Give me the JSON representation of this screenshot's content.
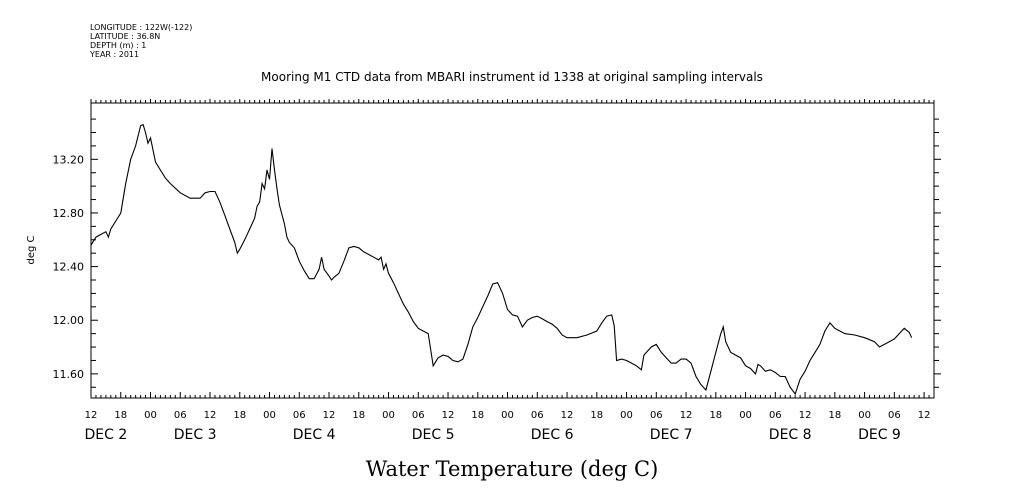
{
  "header": {
    "meta_lines": [
      "LONGITUDE : 122W(-122)",
      "LATITUDE : 36.8N",
      "DEPTH (m) : 1",
      "YEAR : 2011"
    ]
  },
  "chart_data": {
    "type": "line",
    "title": "Mooring M1 CTD data from MBARI instrument id 1338 at original sampling intervals",
    "ylabel": "deg C",
    "xlabel": "Water Temperature (deg C)",
    "ylim": [
      11.42,
      13.62
    ],
    "xlim": [
      0,
      170
    ],
    "x_unit": "hours since 12:00 Dec 1",
    "yticks": [
      11.6,
      12.0,
      12.4,
      12.8,
      13.2
    ],
    "ytick_labels": [
      "11.60",
      "12.00",
      "12.40",
      "12.80",
      "13.20"
    ],
    "hour_ticks": [
      {
        "x": 0,
        "label": "12"
      },
      {
        "x": 6,
        "label": "18"
      },
      {
        "x": 12,
        "label": "00"
      },
      {
        "x": 18,
        "label": "06"
      },
      {
        "x": 24,
        "label": "12"
      },
      {
        "x": 30,
        "label": "18"
      },
      {
        "x": 36,
        "label": "00"
      },
      {
        "x": 42,
        "label": "06"
      },
      {
        "x": 48,
        "label": "12"
      },
      {
        "x": 54,
        "label": "18"
      },
      {
        "x": 60,
        "label": "00"
      },
      {
        "x": 66,
        "label": "06"
      },
      {
        "x": 72,
        "label": "12"
      },
      {
        "x": 78,
        "label": "18"
      },
      {
        "x": 84,
        "label": "00"
      },
      {
        "x": 90,
        "label": "06"
      },
      {
        "x": 96,
        "label": "12"
      },
      {
        "x": 102,
        "label": "18"
      },
      {
        "x": 108,
        "label": "00"
      },
      {
        "x": 114,
        "label": "06"
      },
      {
        "x": 120,
        "label": "12"
      },
      {
        "x": 126,
        "label": "18"
      },
      {
        "x": 132,
        "label": "00"
      },
      {
        "x": 138,
        "label": "06"
      },
      {
        "x": 144,
        "label": "12"
      },
      {
        "x": 150,
        "label": "18"
      },
      {
        "x": 156,
        "label": "00"
      },
      {
        "x": 162,
        "label": "06"
      },
      {
        "x": 168,
        "label": "12"
      }
    ],
    "day_labels": [
      {
        "x": 3,
        "label": "DEC  2"
      },
      {
        "x": 21,
        "label": "DEC  3"
      },
      {
        "x": 45,
        "label": "DEC  4"
      },
      {
        "x": 69,
        "label": "DEC  5"
      },
      {
        "x": 93,
        "label": "DEC  6"
      },
      {
        "x": 117,
        "label": "DEC  7"
      },
      {
        "x": 141,
        "label": "DEC  8"
      },
      {
        "x": 159,
        "label": "DEC  9"
      }
    ],
    "series": [
      {
        "points": [
          [
            0,
            12.56
          ],
          [
            1,
            12.62
          ],
          [
            2,
            12.64
          ],
          [
            3,
            12.66
          ],
          [
            3.5,
            12.62
          ],
          [
            4,
            12.68
          ],
          [
            5,
            12.74
          ],
          [
            6,
            12.8
          ],
          [
            7,
            13.02
          ],
          [
            8,
            13.2
          ],
          [
            9,
            13.3
          ],
          [
            10,
            13.45
          ],
          [
            10.5,
            13.46
          ],
          [
            11,
            13.4
          ],
          [
            11.5,
            13.32
          ],
          [
            12,
            13.36
          ],
          [
            13,
            13.18
          ],
          [
            14,
            13.12
          ],
          [
            15,
            13.06
          ],
          [
            16,
            13.02
          ],
          [
            18,
            12.95
          ],
          [
            20,
            12.91
          ],
          [
            22,
            12.91
          ],
          [
            23,
            12.95
          ],
          [
            24,
            12.96
          ],
          [
            25,
            12.96
          ],
          [
            26,
            12.88
          ],
          [
            27,
            12.78
          ],
          [
            28,
            12.68
          ],
          [
            29,
            12.58
          ],
          [
            29.5,
            12.5
          ],
          [
            30,
            12.53
          ],
          [
            31,
            12.6
          ],
          [
            32,
            12.68
          ],
          [
            33,
            12.76
          ],
          [
            33.5,
            12.85
          ],
          [
            34,
            12.88
          ],
          [
            34.5,
            13.02
          ],
          [
            35,
            12.98
          ],
          [
            35.5,
            13.12
          ],
          [
            36,
            13.05
          ],
          [
            36.5,
            13.28
          ],
          [
            37,
            13.12
          ],
          [
            37.5,
            12.98
          ],
          [
            38,
            12.86
          ],
          [
            39,
            12.72
          ],
          [
            39.5,
            12.62
          ],
          [
            40,
            12.58
          ],
          [
            41,
            12.54
          ],
          [
            42,
            12.44
          ],
          [
            43,
            12.37
          ],
          [
            44,
            12.31
          ],
          [
            45,
            12.31
          ],
          [
            46,
            12.38
          ],
          [
            46.5,
            12.47
          ],
          [
            47,
            12.38
          ],
          [
            48,
            12.33
          ],
          [
            48.5,
            12.3
          ],
          [
            49,
            12.32
          ],
          [
            50,
            12.35
          ],
          [
            51,
            12.44
          ],
          [
            52,
            12.54
          ],
          [
            53,
            12.55
          ],
          [
            54,
            12.54
          ],
          [
            55,
            12.51
          ],
          [
            56,
            12.49
          ],
          [
            57,
            12.47
          ],
          [
            58,
            12.45
          ],
          [
            58.5,
            12.47
          ],
          [
            59,
            12.38
          ],
          [
            59.5,
            12.42
          ],
          [
            60,
            12.35
          ],
          [
            61,
            12.28
          ],
          [
            62,
            12.2
          ],
          [
            63,
            12.12
          ],
          [
            64,
            12.06
          ],
          [
            65,
            11.99
          ],
          [
            66,
            11.94
          ],
          [
            67,
            11.92
          ],
          [
            68,
            11.9
          ],
          [
            69,
            11.66
          ],
          [
            70,
            11.72
          ],
          [
            71,
            11.74
          ],
          [
            72,
            11.73
          ],
          [
            73,
            11.7
          ],
          [
            74,
            11.69
          ],
          [
            75,
            11.71
          ],
          [
            76,
            11.82
          ],
          [
            77,
            11.95
          ],
          [
            78,
            12.02
          ],
          [
            79,
            12.1
          ],
          [
            80,
            12.18
          ],
          [
            81,
            12.27
          ],
          [
            82,
            12.28
          ],
          [
            83,
            12.2
          ],
          [
            84,
            12.08
          ],
          [
            85,
            12.04
          ],
          [
            86,
            12.03
          ],
          [
            87,
            11.95
          ],
          [
            88,
            12.0
          ],
          [
            89,
            12.02
          ],
          [
            90,
            12.03
          ],
          [
            91,
            12.01
          ],
          [
            92,
            11.99
          ],
          [
            93,
            11.97
          ],
          [
            94,
            11.94
          ],
          [
            95,
            11.89
          ],
          [
            96,
            11.87
          ],
          [
            98,
            11.87
          ],
          [
            100,
            11.89
          ],
          [
            102,
            11.92
          ],
          [
            103,
            11.98
          ],
          [
            104,
            12.03
          ],
          [
            105,
            12.04
          ],
          [
            105.5,
            11.96
          ],
          [
            106,
            11.7
          ],
          [
            107,
            11.71
          ],
          [
            108,
            11.7
          ],
          [
            109,
            11.68
          ],
          [
            110,
            11.66
          ],
          [
            111,
            11.63
          ],
          [
            111.5,
            11.74
          ],
          [
            112,
            11.76
          ],
          [
            113,
            11.8
          ],
          [
            114,
            11.82
          ],
          [
            115,
            11.76
          ],
          [
            116,
            11.72
          ],
          [
            117,
            11.68
          ],
          [
            118,
            11.68
          ],
          [
            119,
            11.71
          ],
          [
            120,
            11.71
          ],
          [
            121,
            11.68
          ],
          [
            122,
            11.58
          ],
          [
            123,
            11.52
          ],
          [
            124,
            11.48
          ],
          [
            125,
            11.62
          ],
          [
            126,
            11.76
          ],
          [
            127,
            11.9
          ],
          [
            127.5,
            11.95
          ],
          [
            128,
            11.84
          ],
          [
            129,
            11.76
          ],
          [
            130,
            11.74
          ],
          [
            131,
            11.72
          ],
          [
            132,
            11.66
          ],
          [
            133,
            11.64
          ],
          [
            134,
            11.6
          ],
          [
            134.5,
            11.67
          ],
          [
            135,
            11.66
          ],
          [
            136,
            11.62
          ],
          [
            137,
            11.63
          ],
          [
            138,
            11.61
          ],
          [
            139,
            11.58
          ],
          [
            140,
            11.58
          ],
          [
            141,
            11.5
          ],
          [
            142,
            11.45
          ],
          [
            143,
            11.56
          ],
          [
            144,
            11.62
          ],
          [
            145,
            11.7
          ],
          [
            146,
            11.76
          ],
          [
            147,
            11.82
          ],
          [
            148,
            11.92
          ],
          [
            149,
            11.98
          ],
          [
            150,
            11.94
          ],
          [
            151,
            11.92
          ],
          [
            152,
            11.9
          ],
          [
            154,
            11.89
          ],
          [
            156,
            11.87
          ],
          [
            158,
            11.84
          ],
          [
            159,
            11.8
          ],
          [
            160,
            11.82
          ],
          [
            162,
            11.86
          ],
          [
            163,
            11.9
          ],
          [
            164,
            11.94
          ],
          [
            165,
            11.91
          ],
          [
            165.5,
            11.87
          ]
        ]
      }
    ]
  }
}
